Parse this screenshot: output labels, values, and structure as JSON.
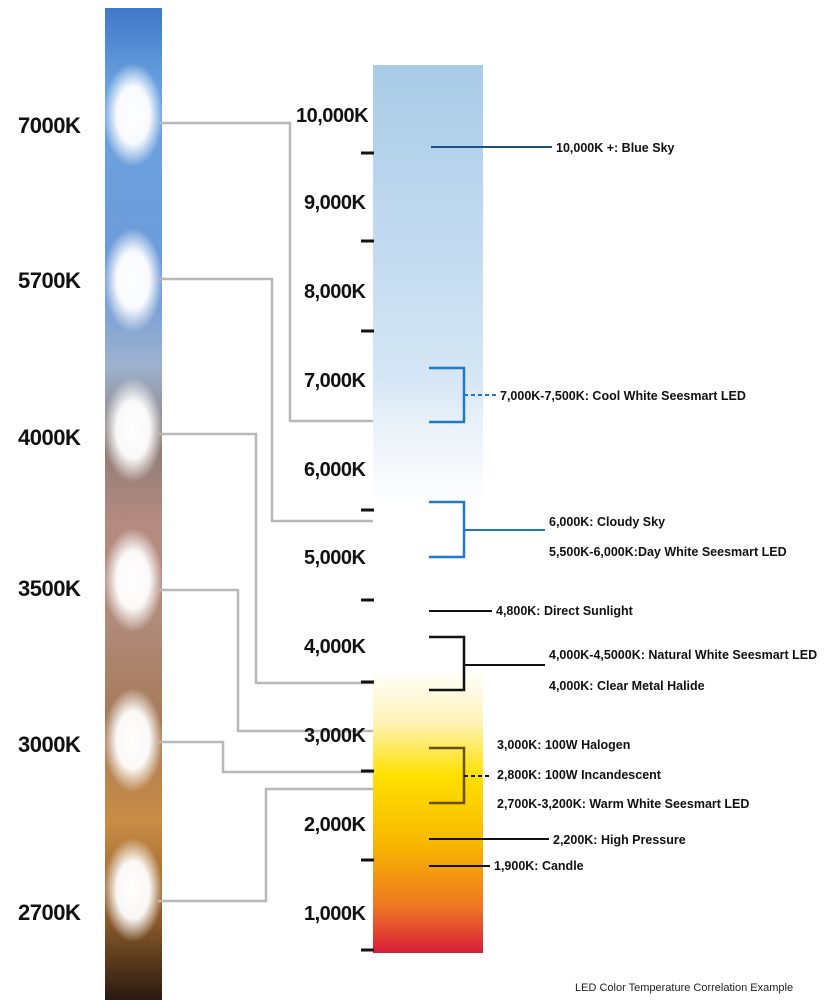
{
  "strip_labels": [
    "7000K",
    "5700K",
    "4000K",
    "3500K",
    "3000K",
    "2700K"
  ],
  "scale_labels": [
    "10,000K",
    "9,000K",
    "8,000K",
    "7,000K",
    "6,000K",
    "5,000K",
    "4,000K",
    "3,000K",
    "2,000K",
    "1,000K"
  ],
  "annotations": [
    "10,000K +: Blue Sky",
    "7,000K-7,500K: Cool White Seesmart LED",
    "6,000K: Cloudy Sky",
    "5,500K-6,000K:Day White Seesmart LED",
    "4,800K: Direct Sunlight",
    "4,000K-4,5000K: Natural White Seesmart LED",
    "4,000K: Clear Metal Halide",
    "3,000K: 100W Halogen",
    "2,800K: 100W Incandescent",
    "2,700K-3,200K: Warm White Seesmart LED",
    "2,200K: High Pressure",
    "1,900K: Candle"
  ],
  "caption": "LED Color Temperature Correlation Example",
  "colors": {
    "cool_blue": "#a9cbe8",
    "warm_yellow": "#ffe100",
    "warm_orange": "#f28a1a",
    "deep_red": "#d81b3a",
    "bracket_blue": "#1f78c8",
    "connector_gray": "#b8b8b8"
  }
}
